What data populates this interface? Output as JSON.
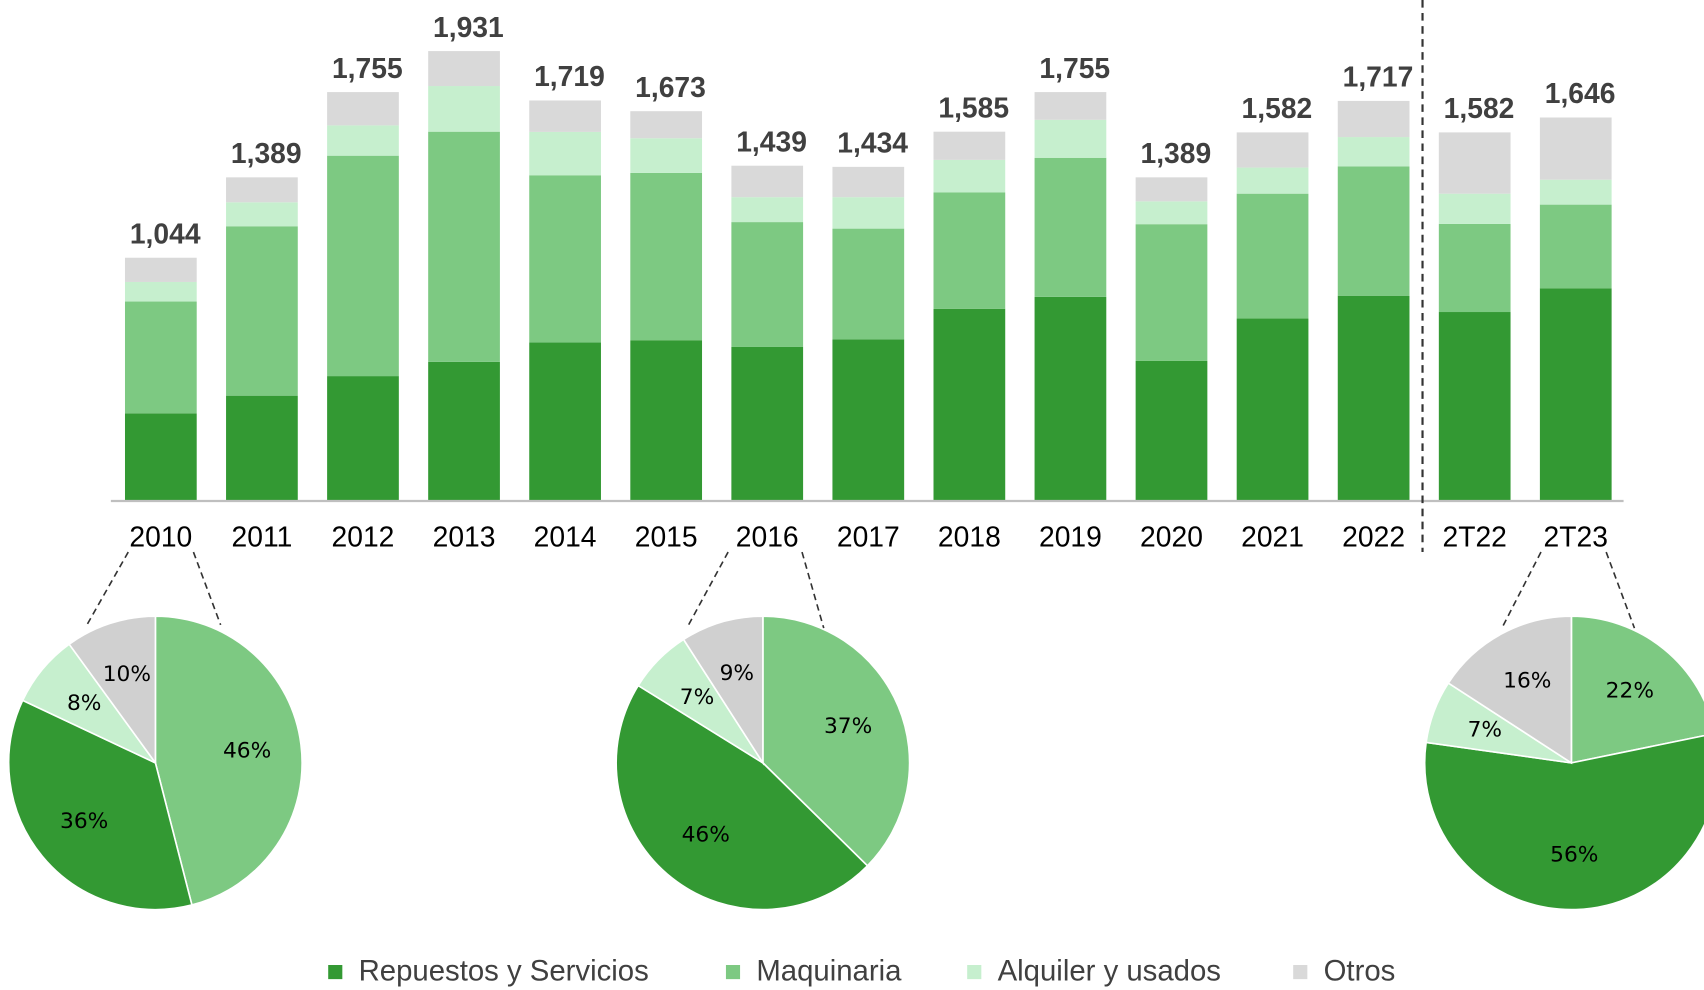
{
  "chart_data": [
    {
      "type": "bar",
      "stacked": true,
      "categories": [
        "2010",
        "2011",
        "2012",
        "2013",
        "2014",
        "2015",
        "2016",
        "2017",
        "2018",
        "2019",
        "2020",
        "2021",
        "2022",
        "2T22",
        "2T23"
      ],
      "series": [
        {
          "name": "Repuestos y Servicios",
          "color": "#339933",
          "values": [
            376,
            452,
            536,
            597,
            680,
            690,
            661,
            694,
            825,
            876,
            601,
            783,
            881,
            811,
            913
          ]
        },
        {
          "name": "Maquinaria",
          "color": "#7dc982",
          "values": [
            480,
            727,
            946,
            988,
            718,
            718,
            536,
            475,
            499,
            597,
            587,
            536,
            555,
            378,
            359
          ]
        },
        {
          "name": "Alquiler y usados",
          "color": "#c6efce",
          "values": [
            84,
            103,
            130,
            196,
            186,
            149,
            107,
            135,
            140,
            163,
            98,
            112,
            126,
            130,
            107
          ]
        },
        {
          "name": "Otros",
          "color": "#d9d9d9",
          "values": [
            104,
            107,
            143,
            150,
            135,
            116,
            135,
            130,
            121,
            119,
            103,
            151,
            155,
            263,
            267
          ]
        }
      ],
      "totals": {
        "values": [
          1044,
          1389,
          1755,
          1931,
          1719,
          1673,
          1439,
          1434,
          1585,
          1755,
          1389,
          1582,
          1717,
          1582,
          1646
        ],
        "value_labels": [
          "1,044",
          "1,389",
          "1,755",
          "1,931",
          "1,719",
          "1,673",
          "1,439",
          "1,434",
          "1,585",
          "1,755",
          "1,389",
          "1,582",
          "1,717",
          "1,582",
          "1,646"
        ]
      },
      "ylim": [
        0,
        1931
      ],
      "legend": "bottom"
    },
    {
      "type": "pie",
      "values": [
        36,
        46,
        8,
        10
      ],
      "value_labels": [
        "36%",
        "46%",
        "8%",
        "10%"
      ],
      "colors": [
        "#339933",
        "#7dc982",
        "#c6efce",
        "#d0d0d0"
      ]
    },
    {
      "type": "pie",
      "values": [
        46,
        37,
        7,
        9
      ],
      "value_labels": [
        "46%",
        "37%",
        "7%",
        "9%"
      ],
      "colors": [
        "#339933",
        "#7dc982",
        "#c6efce",
        "#d0d0d0"
      ]
    },
    {
      "type": "pie",
      "values": [
        56,
        22,
        7,
        16
      ],
      "value_labels": [
        "56%",
        "22%",
        "7%",
        "16%"
      ],
      "colors": [
        "#339933",
        "#7dc982",
        "#c6efce",
        "#d0d0d0"
      ]
    }
  ]
}
